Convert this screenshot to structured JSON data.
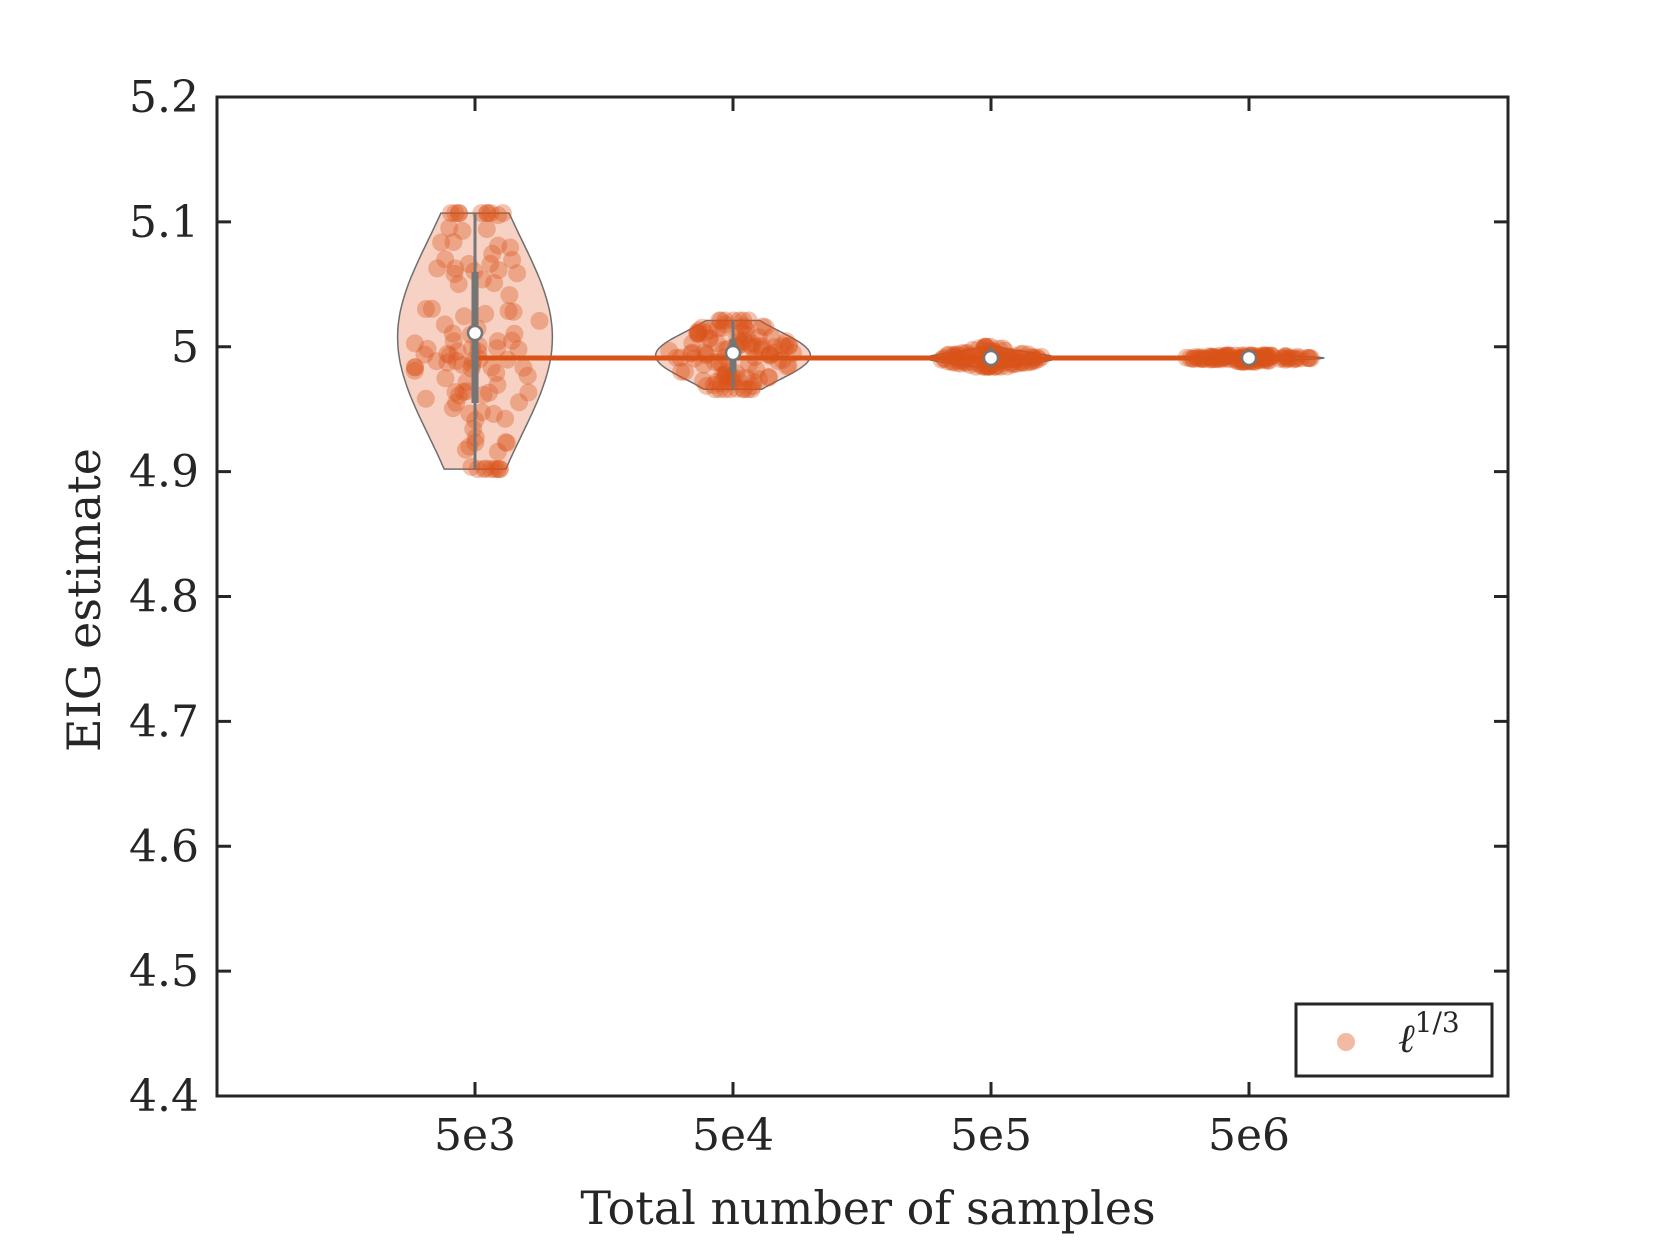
{
  "chart_data": {
    "type": "violin",
    "title": "",
    "xlabel": "Total number of samples",
    "ylabel": "EIG estimate",
    "categories": [
      "5e3",
      "5e4",
      "5e5",
      "5e6"
    ],
    "ylim": [
      4.4,
      5.2
    ],
    "yticks": [
      4.4,
      4.5,
      4.6,
      4.7,
      4.8,
      4.9,
      5.0,
      5.1,
      5.2
    ],
    "ytick_labels": [
      "4.4",
      "4.5",
      "4.6",
      "4.7",
      "4.8",
      "4.9",
      "5",
      "5.1",
      "5.2"
    ],
    "reference_line": {
      "y": 4.991,
      "from_category": "5e3",
      "to_category": "5e6",
      "color": "#d95319"
    },
    "series": [
      {
        "name": "ℓ^(1/3)",
        "color": "#d95319",
        "violins": [
          {
            "category": "5e3",
            "median": 5.011,
            "q1": 4.955,
            "q3": 5.06,
            "min": 4.902,
            "max": 5.107,
            "max_halfwidth": 0.3,
            "n_points": 110
          },
          {
            "category": "5e4",
            "median": 4.995,
            "q1": 4.98,
            "q3": 5.006,
            "min": 4.966,
            "max": 5.021,
            "max_halfwidth": 0.3,
            "n_points": 110
          },
          {
            "category": "5e5",
            "median": 4.991,
            "q1": 4.988,
            "q3": 4.994,
            "min": 4.984,
            "max": 5.0,
            "max_halfwidth": 0.25,
            "n_points": 110
          },
          {
            "category": "5e6",
            "median": 4.991,
            "q1": 4.99,
            "q3": 4.992,
            "min": 4.988,
            "max": 4.993,
            "max_halfwidth": 0.29,
            "n_points": 110
          }
        ]
      }
    ],
    "legend": {
      "position": "bottom-right",
      "entries": [
        {
          "symbol": "ℓ",
          "superscript": "1/3",
          "marker_color": "#f2b9a3"
        }
      ]
    },
    "grid": false
  }
}
